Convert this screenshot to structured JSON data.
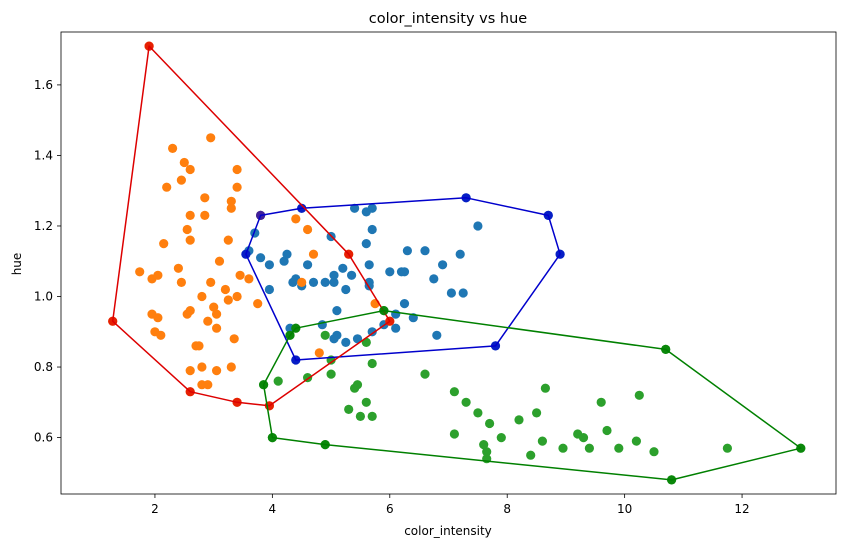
{
  "chart_data": {
    "type": "scatter",
    "title": "color_intensity vs hue",
    "xlabel": "color_intensity",
    "ylabel": "hue",
    "xlim": [
      0.4,
      13.6
    ],
    "ylim": [
      0.44,
      1.75
    ],
    "xticks": [
      2,
      4,
      6,
      8,
      10,
      12
    ],
    "yticks": [
      0.6,
      0.8,
      1.0,
      1.2,
      1.4,
      1.6
    ],
    "xtick_labels": [
      "2",
      "4",
      "6",
      "8",
      "10",
      "12"
    ],
    "ytick_labels": [
      "0.6",
      "0.8",
      "1.0",
      "1.2",
      "1.4",
      "1.6"
    ],
    "grid": false,
    "legend": false,
    "series": [
      {
        "color": "#1f77b4",
        "hull_color": "#0000cc",
        "points": [
          [
            3.6,
            1.13
          ],
          [
            3.7,
            1.18
          ],
          [
            3.8,
            1.23
          ],
          [
            3.8,
            1.11
          ],
          [
            3.95,
            1.09
          ],
          [
            3.95,
            1.02
          ],
          [
            4.2,
            1.1
          ],
          [
            4.25,
            1.12
          ],
          [
            4.3,
            0.91
          ],
          [
            4.35,
            1.04
          ],
          [
            4.4,
            0.82
          ],
          [
            4.4,
            1.05
          ],
          [
            4.5,
            1.03
          ],
          [
            4.5,
            1.25
          ],
          [
            4.6,
            1.09
          ],
          [
            4.7,
            1.04
          ],
          [
            4.9,
            1.04
          ],
          [
            5.0,
            1.17
          ],
          [
            5.05,
            1.06
          ],
          [
            5.05,
            1.04
          ],
          [
            5.1,
            0.96
          ],
          [
            5.1,
            0.89
          ],
          [
            5.05,
            0.88
          ],
          [
            5.2,
            1.08
          ],
          [
            5.25,
            1.02
          ],
          [
            5.25,
            0.87
          ],
          [
            5.4,
            1.25
          ],
          [
            5.45,
            0.88
          ],
          [
            5.6,
            1.15
          ],
          [
            5.6,
            1.24
          ],
          [
            5.65,
            1.04
          ],
          [
            5.65,
            1.03
          ],
          [
            5.65,
            1.09
          ],
          [
            5.7,
            1.19
          ],
          [
            5.7,
            1.25
          ],
          [
            5.7,
            0.9
          ],
          [
            5.9,
            0.92
          ],
          [
            6.0,
            1.07
          ],
          [
            6.1,
            0.91
          ],
          [
            6.2,
            1.07
          ],
          [
            6.25,
            1.07
          ],
          [
            6.25,
            0.98
          ],
          [
            6.3,
            1.13
          ],
          [
            6.4,
            0.94
          ],
          [
            6.6,
            1.13
          ],
          [
            6.75,
            1.05
          ],
          [
            6.8,
            0.89
          ],
          [
            6.9,
            1.09
          ],
          [
            7.05,
            1.01
          ],
          [
            7.2,
            1.12
          ],
          [
            7.25,
            1.01
          ],
          [
            7.3,
            1.28
          ],
          [
            7.5,
            1.2
          ],
          [
            7.8,
            0.86
          ],
          [
            8.7,
            1.23
          ],
          [
            8.9,
            1.12
          ],
          [
            3.55,
            1.12
          ],
          [
            5.35,
            1.06
          ],
          [
            4.85,
            0.92
          ],
          [
            6.1,
            0.95
          ]
        ],
        "hull": [
          [
            1.28,
            0.93
          ],
          [
            1.28,
            0.93
          ]
        ]
      },
      {
        "color": "#ff7f0e",
        "hull_color": "#dd0000",
        "points": [
          [
            1.28,
            0.93
          ],
          [
            1.74,
            1.07
          ],
          [
            1.9,
            1.71
          ],
          [
            1.95,
            1.05
          ],
          [
            1.95,
            0.95
          ],
          [
            2.0,
            0.9
          ],
          [
            2.05,
            0.94
          ],
          [
            2.05,
            1.06
          ],
          [
            2.1,
            0.89
          ],
          [
            2.15,
            1.15
          ],
          [
            2.2,
            1.31
          ],
          [
            2.3,
            1.42
          ],
          [
            2.4,
            1.08
          ],
          [
            2.45,
            1.04
          ],
          [
            2.45,
            1.33
          ],
          [
            2.5,
            1.38
          ],
          [
            2.55,
            0.95
          ],
          [
            2.55,
            1.19
          ],
          [
            2.6,
            1.16
          ],
          [
            2.6,
            0.96
          ],
          [
            2.6,
            1.23
          ],
          [
            2.6,
            1.36
          ],
          [
            2.6,
            0.79
          ],
          [
            2.6,
            0.73
          ],
          [
            2.7,
            0.86
          ],
          [
            2.75,
            0.86
          ],
          [
            2.8,
            1.0
          ],
          [
            2.8,
            0.8
          ],
          [
            2.8,
            0.75
          ],
          [
            2.85,
            1.23
          ],
          [
            2.85,
            1.28
          ],
          [
            2.9,
            0.75
          ],
          [
            2.9,
            0.93
          ],
          [
            2.95,
            1.04
          ],
          [
            2.95,
            1.45
          ],
          [
            3.0,
            0.97
          ],
          [
            3.05,
            0.95
          ],
          [
            3.05,
            0.91
          ],
          [
            3.05,
            0.79
          ],
          [
            3.1,
            1.1
          ],
          [
            3.2,
            1.02
          ],
          [
            3.25,
            0.99
          ],
          [
            3.25,
            1.16
          ],
          [
            3.3,
            0.8
          ],
          [
            3.3,
            1.25
          ],
          [
            3.3,
            1.27
          ],
          [
            3.35,
            0.88
          ],
          [
            3.4,
            1.31
          ],
          [
            3.4,
            1.36
          ],
          [
            3.4,
            1.0
          ],
          [
            3.4,
            0.7
          ],
          [
            3.45,
            1.06
          ],
          [
            3.6,
            1.05
          ],
          [
            3.75,
            0.98
          ],
          [
            3.8,
            1.23
          ],
          [
            3.95,
            0.69
          ],
          [
            4.4,
            1.22
          ],
          [
            4.5,
            1.04
          ],
          [
            4.6,
            1.19
          ],
          [
            4.7,
            1.12
          ],
          [
            4.8,
            0.84
          ],
          [
            5.3,
            1.12
          ],
          [
            5.75,
            0.98
          ],
          [
            6.0,
            0.93
          ]
        ],
        "hull": []
      },
      {
        "color": "#2ca02c",
        "hull_color": "#008000",
        "points": [
          [
            3.85,
            0.75
          ],
          [
            4.0,
            0.6
          ],
          [
            4.1,
            0.76
          ],
          [
            4.3,
            0.89
          ],
          [
            4.4,
            0.91
          ],
          [
            4.6,
            0.77
          ],
          [
            4.9,
            0.89
          ],
          [
            4.9,
            0.58
          ],
          [
            5.0,
            0.82
          ],
          [
            5.0,
            0.78
          ],
          [
            5.3,
            0.68
          ],
          [
            5.4,
            0.74
          ],
          [
            5.45,
            0.75
          ],
          [
            5.5,
            0.66
          ],
          [
            5.6,
            0.7
          ],
          [
            5.6,
            0.87
          ],
          [
            5.7,
            0.81
          ],
          [
            5.7,
            0.66
          ],
          [
            5.9,
            0.96
          ],
          [
            6.6,
            0.78
          ],
          [
            7.1,
            0.61
          ],
          [
            7.1,
            0.73
          ],
          [
            7.3,
            0.7
          ],
          [
            7.5,
            0.67
          ],
          [
            7.6,
            0.58
          ],
          [
            7.65,
            0.56
          ],
          [
            7.65,
            0.54
          ],
          [
            7.7,
            0.64
          ],
          [
            7.9,
            0.6
          ],
          [
            8.2,
            0.65
          ],
          [
            8.4,
            0.55
          ],
          [
            8.5,
            0.67
          ],
          [
            8.6,
            0.59
          ],
          [
            8.65,
            0.74
          ],
          [
            8.95,
            0.57
          ],
          [
            9.2,
            0.61
          ],
          [
            9.3,
            0.6
          ],
          [
            9.4,
            0.57
          ],
          [
            9.6,
            0.7
          ],
          [
            9.7,
            0.62
          ],
          [
            9.9,
            0.57
          ],
          [
            10.2,
            0.59
          ],
          [
            10.25,
            0.72
          ],
          [
            10.5,
            0.56
          ],
          [
            10.7,
            0.85
          ],
          [
            10.8,
            0.48
          ],
          [
            11.75,
            0.57
          ],
          [
            13.0,
            0.57
          ]
        ],
        "hull": []
      }
    ]
  }
}
